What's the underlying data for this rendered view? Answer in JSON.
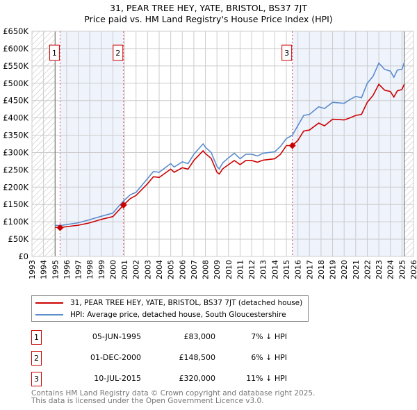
{
  "title_line1": "31, PEAR TREE HEY, YATE, BRISTOL, BS37 7JT",
  "title_line2": "Price paid vs. HM Land Registry's House Price Index (HPI)",
  "chart_data": {
    "type": "line",
    "xlim": [
      1993,
      2026
    ],
    "ylim": [
      0,
      650000
    ],
    "y_ticks": [
      0,
      50000,
      100000,
      150000,
      200000,
      250000,
      300000,
      350000,
      400000,
      450000,
      500000,
      550000,
      600000,
      650000
    ],
    "y_tick_labels": [
      "£0",
      "£50K",
      "£100K",
      "£150K",
      "£200K",
      "£250K",
      "£300K",
      "£350K",
      "£400K",
      "£450K",
      "£500K",
      "£550K",
      "£600K",
      "£650K"
    ],
    "x_ticks": [
      1993,
      1994,
      1995,
      1996,
      1997,
      1998,
      1999,
      2000,
      2001,
      2002,
      2003,
      2004,
      2005,
      2006,
      2007,
      2008,
      2009,
      2010,
      2011,
      2012,
      2013,
      2014,
      2015,
      2016,
      2017,
      2018,
      2019,
      2020,
      2021,
      2022,
      2023,
      2024,
      2025,
      2026
    ],
    "hatched_ranges": [
      [
        1993,
        1995.0
      ],
      [
        2025.2,
        2026
      ]
    ],
    "shaded_ranges": [
      [
        1995.43,
        2000.92
      ],
      [
        2015.52,
        2025.2
      ]
    ],
    "series": [
      {
        "name": "31, PEAR TREE HEY, YATE, BRISTOL, BS37 7JT (detached house)",
        "color": "#cc0000",
        "x": [
          1995.0,
          1995.43,
          1996,
          1997,
          1998,
          1999,
          2000,
          2000.5,
          2000.92,
          2001.5,
          2002,
          2003,
          2003.5,
          2004,
          2005,
          2005.3,
          2006,
          2006.5,
          2007,
          2007.8,
          2008,
          2008.5,
          2009,
          2009.2,
          2009.5,
          2010,
          2010.5,
          2011,
          2011.5,
          2012,
          2012.5,
          2013,
          2014,
          2014.5,
          2015,
          2015.52,
          2016,
          2016.5,
          2017,
          2017.8,
          2018.3,
          2019,
          2020,
          2020.5,
          2021,
          2021.5,
          2022,
          2022.5,
          2023,
          2023.5,
          2024,
          2024.3,
          2024.6,
          2025,
          2025.2
        ],
        "y": [
          84000,
          83000,
          86000,
          90000,
          97000,
          107000,
          115000,
          133000,
          148500,
          167000,
          176000,
          210000,
          230000,
          228000,
          252000,
          243000,
          256000,
          252000,
          277000,
          305000,
          297000,
          283000,
          243000,
          238000,
          253000,
          265000,
          277000,
          265000,
          277000,
          277000,
          272000,
          278000,
          282000,
          295000,
          320000,
          320000,
          335000,
          362000,
          365000,
          385000,
          377000,
          396000,
          394000,
          400000,
          407000,
          410000,
          445000,
          465000,
          497000,
          480000,
          476000,
          460000,
          478000,
          482000,
          497000
        ]
      },
      {
        "name": "HPI: Average price, detached house, South Gloucestershire",
        "color": "#5b8ccc",
        "x": [
          1995.0,
          1995.43,
          1996,
          1997,
          1998,
          1999,
          2000,
          2000.5,
          2000.92,
          2001.5,
          2002,
          2003,
          2003.5,
          2004,
          2005,
          2005.3,
          2006,
          2006.5,
          2007,
          2007.8,
          2008,
          2008.5,
          2009,
          2009.2,
          2009.5,
          2010,
          2010.5,
          2011,
          2011.5,
          2012,
          2012.5,
          2013,
          2014,
          2014.5,
          2015,
          2015.52,
          2016,
          2016.5,
          2017,
          2017.8,
          2018.3,
          2019,
          2020,
          2020.5,
          2021,
          2021.5,
          2022,
          2022.5,
          2023,
          2023.5,
          2024,
          2024.3,
          2024.6,
          2025,
          2025.2
        ],
        "y": [
          90000,
          89000,
          92000,
          97000,
          106000,
          116000,
          125000,
          145000,
          160000,
          178000,
          185000,
          225000,
          245000,
          243000,
          268000,
          258000,
          273000,
          268000,
          295000,
          325000,
          315000,
          300000,
          260000,
          253000,
          270000,
          285000,
          298000,
          282000,
          295000,
          295000,
          290000,
          298000,
          302000,
          318000,
          340000,
          350000,
          378000,
          407000,
          410000,
          432000,
          427000,
          445000,
          442000,
          453000,
          462000,
          458000,
          500000,
          520000,
          558000,
          540000,
          535000,
          517000,
          538000,
          540000,
          560000
        ]
      }
    ],
    "sales": [
      {
        "label": "1",
        "x": 1995.43,
        "y": 83000
      },
      {
        "label": "2",
        "x": 2000.92,
        "y": 148500
      },
      {
        "label": "3",
        "x": 2015.52,
        "y": 320000
      }
    ]
  },
  "table": [
    {
      "num": "1",
      "date": "05-JUN-1995",
      "price": "£83,000",
      "hpi": "7% ↓ HPI"
    },
    {
      "num": "2",
      "date": "01-DEC-2000",
      "price": "£148,500",
      "hpi": "6% ↓ HPI"
    },
    {
      "num": "3",
      "date": "10-JUL-2015",
      "price": "£320,000",
      "hpi": "11% ↓ HPI"
    }
  ],
  "footer_line1": "Contains HM Land Registry data © Crown copyright and database right 2025.",
  "footer_line2": "This data is licensed under the Open Government Licence v3.0."
}
